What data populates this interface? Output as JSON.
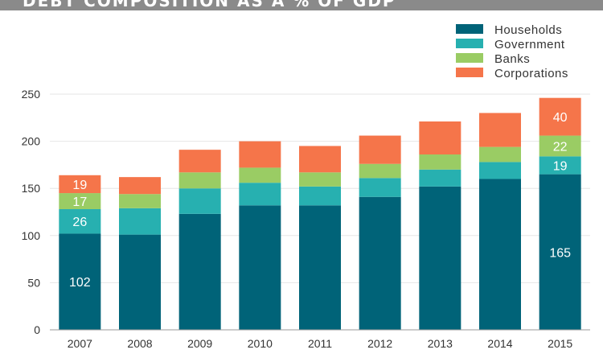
{
  "header": {
    "title": "DEBT COMPOSITION AS A % OF GDP"
  },
  "chart_data": {
    "type": "bar",
    "stacked": true,
    "title": "DEBT COMPOSITION AS A % OF GDP",
    "xlabel": "",
    "ylabel": "",
    "categories": [
      "2007",
      "2008",
      "2009",
      "2010",
      "2011",
      "2012",
      "2013",
      "2014",
      "2015"
    ],
    "series": [
      {
        "name": "Households",
        "color": "#006378",
        "values": [
          102,
          101,
          123,
          132,
          132,
          141,
          152,
          160,
          165
        ]
      },
      {
        "name": "Government",
        "color": "#27b0b0",
        "values": [
          26,
          28,
          27,
          24,
          20,
          20,
          18,
          18,
          19
        ]
      },
      {
        "name": "Banks",
        "color": "#9acc64",
        "values": [
          17,
          15,
          17,
          16,
          15,
          15,
          16,
          16,
          22
        ]
      },
      {
        "name": "Corporations",
        "color": "#f5754a",
        "values": [
          19,
          18,
          24,
          28,
          28,
          30,
          35,
          36,
          40
        ]
      }
    ],
    "data_labels": [
      {
        "category": "2007",
        "series": "Households",
        "text": "102"
      },
      {
        "category": "2007",
        "series": "Government",
        "text": "26"
      },
      {
        "category": "2007",
        "series": "Banks",
        "text": "17"
      },
      {
        "category": "2007",
        "series": "Corporations",
        "text": "19"
      },
      {
        "category": "2015",
        "series": "Households",
        "text": "165"
      },
      {
        "category": "2015",
        "series": "Government",
        "text": "19"
      },
      {
        "category": "2015",
        "series": "Banks",
        "text": "22"
      },
      {
        "category": "2015",
        "series": "Corporations",
        "text": "40"
      }
    ],
    "ylim": [
      0,
      250
    ],
    "yticks": [
      0,
      50,
      100,
      150,
      200,
      250
    ],
    "grid": true,
    "legend": "top-right"
  }
}
